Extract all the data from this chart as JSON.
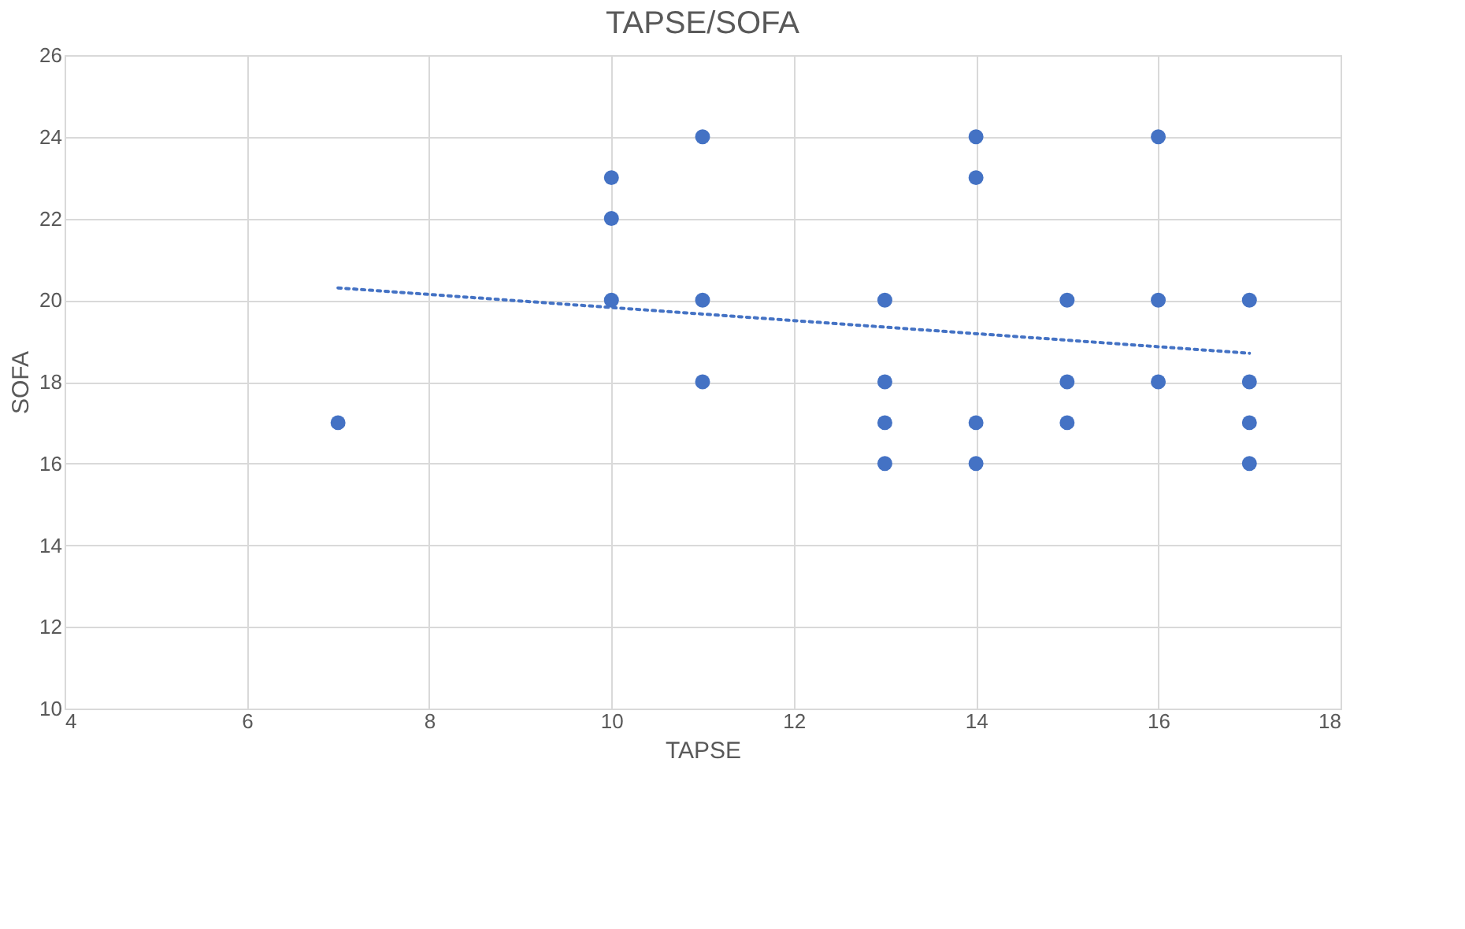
{
  "chart_data": {
    "type": "scatter",
    "title": "TAPSE/SOFA",
    "xlabel": "TAPSE",
    "ylabel": "SOFA",
    "xlim": [
      4,
      18
    ],
    "xticks": [
      4,
      6,
      8,
      10,
      12,
      14,
      16,
      18
    ],
    "ylim": [
      10,
      26
    ],
    "yticks": [
      10,
      12,
      14,
      16,
      18,
      20,
      22,
      24,
      26
    ],
    "grid": true,
    "series": [
      {
        "color": "#4472c4",
        "marker": "circle",
        "x": [
          7,
          10,
          10,
          10,
          11,
          11,
          11,
          13,
          13,
          13,
          13,
          14,
          14,
          14,
          14,
          15,
          15,
          15,
          16,
          16,
          16,
          17,
          17,
          17,
          17
        ],
        "values": [
          17,
          23,
          22,
          20,
          24,
          20,
          18,
          20,
          18,
          17,
          16,
          24,
          23,
          17,
          16,
          20,
          18,
          17,
          24,
          20,
          18,
          20,
          18,
          17,
          16
        ]
      },
      {
        "type": "line",
        "color": "#4472c4",
        "line_style": "dotted",
        "x": [
          7,
          17
        ],
        "values": [
          20.3,
          18.7
        ]
      }
    ]
  }
}
